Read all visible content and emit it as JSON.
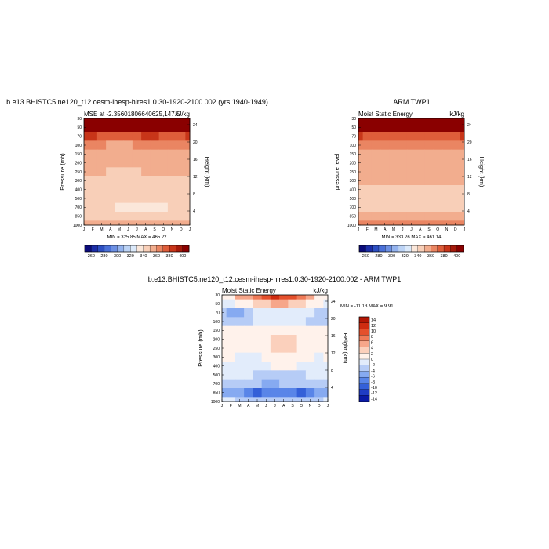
{
  "chart_data": [
    {
      "type": "heatmap",
      "title": "b.e13.BHISTC5.ne120_t12.cesm-ihesp-hires1.0.30-1920-2100.002 (yrs 1940-1949)",
      "left_label": "MSE at -2.35601806640625,147.5",
      "right_label": "kJ/kg",
      "xlabel": "",
      "ylabel": "Pressure (mb)",
      "ylabel_right": "Height (km)",
      "x_ticks": [
        "J",
        "F",
        "M",
        "A",
        "M",
        "J",
        "J",
        "A",
        "S",
        "O",
        "N",
        "D",
        "J"
      ],
      "y_ticks": [
        "30",
        "50",
        "70",
        "100",
        "150",
        "200",
        "250",
        "300",
        "400",
        "500",
        "700",
        "850",
        "1000"
      ],
      "y_ticks_right": [
        "24",
        "20",
        "16",
        "12",
        "8",
        "4"
      ],
      "stats": "MIN = 325.85 MAX = 465.22",
      "colorbar_labels": [
        "260",
        "280",
        "300",
        "320",
        "340",
        "360",
        "380",
        "400"
      ],
      "levels": [
        250,
        260,
        270,
        280,
        290,
        300,
        310,
        320,
        330,
        340,
        350,
        360,
        370,
        380,
        390,
        400
      ],
      "pressure_levels": [
        30,
        50,
        70,
        100,
        150,
        200,
        250,
        300,
        400,
        500,
        700,
        850,
        1000
      ],
      "values_by_level": [
        [
          440,
          440,
          440,
          440,
          440,
          440,
          440,
          440,
          440,
          440,
          440,
          440,
          440
        ],
        [
          405,
          400,
          395,
          392,
          390,
          392,
          395,
          398,
          400,
          398,
          398,
          400,
          405
        ],
        [
          372,
          370,
          368,
          366,
          365,
          366,
          368,
          370,
          370,
          369,
          368,
          369,
          372
        ],
        [
          352,
          351,
          350,
          349,
          348,
          349,
          350,
          351,
          351,
          350,
          350,
          350,
          352
        ],
        [
          347,
          347,
          346,
          345,
          345,
          345,
          346,
          346,
          346,
          346,
          346,
          346,
          347
        ],
        [
          345,
          345,
          344,
          343,
          343,
          343,
          344,
          344,
          344,
          344,
          344,
          344,
          345
        ],
        [
          342,
          342,
          341,
          339,
          338,
          338,
          339,
          340,
          341,
          341,
          341,
          341,
          342
        ],
        [
          338,
          338,
          337,
          336,
          335,
          335,
          335,
          336,
          337,
          337,
          337,
          337,
          338
        ],
        [
          335,
          335,
          334,
          333,
          333,
          332,
          332,
          333,
          334,
          334,
          334,
          334,
          335
        ],
        [
          334,
          334,
          333,
          332,
          331,
          331,
          331,
          331,
          332,
          333,
          333,
          333,
          334
        ],
        [
          331,
          333,
          332,
          330,
          328,
          328,
          328,
          328,
          328,
          329,
          330,
          331,
          331
        ],
        [
          336,
          336,
          336,
          335,
          335,
          334,
          334,
          334,
          335,
          335,
          336,
          336,
          336
        ],
        [
          348,
          348,
          348,
          347,
          346,
          345,
          345,
          346,
          347,
          347,
          348,
          348,
          348
        ]
      ]
    },
    {
      "type": "heatmap",
      "title": "ARM TWP1",
      "left_label": "Moist Static Energy",
      "right_label": "kJ/kg",
      "xlabel": "",
      "ylabel": "pressure level",
      "ylabel_right": "Height (km)",
      "x_ticks": [
        "J",
        "F",
        "M",
        "A",
        "M",
        "J",
        "J",
        "A",
        "S",
        "O",
        "N",
        "D",
        "J"
      ],
      "y_ticks": [
        "30",
        "50",
        "70",
        "100",
        "150",
        "200",
        "250",
        "300",
        "400",
        "500",
        "700",
        "850",
        "1000"
      ],
      "y_ticks_right": [
        "24",
        "20",
        "16",
        "12",
        "8",
        "4"
      ],
      "stats": "MIN = 333.26 MAX = 461.14",
      "colorbar_labels": [
        "260",
        "280",
        "300",
        "320",
        "340",
        "360",
        "380",
        "400"
      ],
      "levels": [
        250,
        260,
        270,
        280,
        290,
        300,
        310,
        320,
        330,
        340,
        350,
        360,
        370,
        380,
        390,
        400
      ],
      "pressure_levels": [
        30,
        50,
        70,
        100,
        150,
        200,
        250,
        300,
        400,
        500,
        700,
        850,
        1000
      ],
      "values_by_level": [
        [
          440,
          440,
          440,
          440,
          440,
          440,
          440,
          440,
          440,
          440,
          440,
          440,
          440
        ],
        [
          400,
          398,
          397,
          396,
          395,
          396,
          397,
          398,
          398,
          397,
          396,
          397,
          400
        ],
        [
          370,
          369,
          368,
          367,
          366,
          367,
          368,
          369,
          369,
          368,
          368,
          368,
          370
        ],
        [
          355,
          354,
          353,
          352,
          352,
          352,
          353,
          353,
          354,
          354,
          353,
          353,
          355
        ],
        [
          348,
          348,
          347,
          347,
          347,
          347,
          347,
          347,
          347,
          347,
          347,
          347,
          348
        ],
        [
          345,
          345,
          345,
          344,
          344,
          344,
          344,
          345,
          345,
          345,
          345,
          345,
          345
        ],
        [
          343,
          343,
          342,
          342,
          342,
          342,
          342,
          342,
          342,
          342,
          342,
          342,
          343
        ],
        [
          341,
          341,
          341,
          340,
          340,
          340,
          340,
          340,
          341,
          341,
          341,
          341,
          341
        ],
        [
          339,
          339,
          339,
          338,
          338,
          338,
          338,
          338,
          339,
          339,
          339,
          339,
          339
        ],
        [
          337,
          337,
          337,
          337,
          337,
          336,
          336,
          336,
          337,
          337,
          337,
          337,
          337
        ],
        [
          336,
          336,
          336,
          335,
          335,
          335,
          335,
          335,
          335,
          336,
          336,
          336,
          336
        ],
        [
          341,
          340,
          340,
          340,
          340,
          340,
          340,
          340,
          340,
          340,
          341,
          341,
          341
        ],
        [
          350,
          350,
          350,
          350,
          350,
          350,
          350,
          350,
          350,
          350,
          350,
          350,
          350
        ]
      ]
    },
    {
      "type": "heatmap",
      "title": "b.e13.BHISTC5.ne120_t12.cesm-ihesp-hires1.0.30-1920-2100.002 - ARM TWP1",
      "left_label": "Moist Static Energy",
      "right_label": "kJ/kg",
      "xlabel": "",
      "ylabel": "Pressure (mb)",
      "ylabel_right": "Height (km)",
      "x_ticks": [
        "J",
        "F",
        "M",
        "A",
        "M",
        "J",
        "J",
        "A",
        "S",
        "O",
        "N",
        "D",
        "J"
      ],
      "y_ticks": [
        "30",
        "50",
        "70",
        "100",
        "150",
        "200",
        "250",
        "300",
        "400",
        "500",
        "700",
        "850",
        "1000"
      ],
      "y_ticks_right": [
        "24",
        "20",
        "16",
        "12",
        "8",
        "4"
      ],
      "stats": "MIN = -11.13 MAX =   9.91",
      "colorbar_labels": [
        "14",
        "12",
        "10",
        "8",
        "6",
        "4",
        "2",
        "0",
        "-2",
        "-4",
        "-6",
        "-8",
        "-10",
        "-12",
        "-14"
      ],
      "levels": [
        -14,
        -12,
        -10,
        -8,
        -6,
        -4,
        -2,
        0,
        2,
        4,
        6,
        8,
        10,
        12,
        14
      ],
      "pressure_levels": [
        30,
        50,
        70,
        100,
        150,
        200,
        250,
        300,
        400,
        500,
        700,
        850,
        1000
      ],
      "values_by_level": [
        [
          -2,
          -1,
          2,
          3,
          5,
          7,
          8,
          7,
          6,
          4,
          2,
          -1,
          -2
        ],
        [
          -3,
          -3,
          -2,
          -1,
          0,
          1,
          2,
          2,
          1,
          0,
          -1,
          -2,
          -3
        ],
        [
          -6,
          -7,
          -7,
          -6,
          -4,
          -3,
          -3,
          -3,
          -3,
          -3,
          -4,
          -6,
          -6
        ],
        [
          -5,
          -6,
          -6,
          -5,
          -4,
          -3,
          -3,
          -3,
          -3,
          -4,
          -5,
          -6,
          -5
        ],
        [
          -2,
          -2,
          -2,
          -2,
          -2,
          -2,
          -2,
          -2,
          -2,
          -2,
          -2,
          -2,
          -2
        ],
        [
          -1,
          -1,
          -1,
          -2,
          -2,
          -1,
          0,
          0,
          0,
          -1,
          -1,
          -1,
          -1
        ],
        [
          -2,
          -2,
          -2,
          -2,
          -2,
          -1,
          0,
          0,
          0,
          -1,
          -1,
          -1,
          -2
        ],
        [
          -2,
          -2,
          -3,
          -3,
          -3,
          -2,
          -1,
          -1,
          -1,
          -2,
          -2,
          -3,
          -2
        ],
        [
          -3,
          -3,
          -3,
          -3,
          -3,
          -3,
          -2,
          -2,
          -2,
          -3,
          -3,
          -3,
          -3
        ],
        [
          -4,
          -4,
          -4,
          -4,
          -5,
          -5,
          -5,
          -5,
          -5,
          -5,
          -4,
          -4,
          -4
        ],
        [
          -5,
          -5,
          -6,
          -6,
          -6,
          -7,
          -7,
          -6,
          -6,
          -6,
          -6,
          -6,
          -5
        ],
        [
          -7,
          -7,
          -8,
          -9,
          -11,
          -10,
          -9,
          -9,
          -10,
          -11,
          -10,
          -8,
          -7
        ],
        [
          -4,
          -4,
          -5,
          -5,
          -6,
          -5,
          -5,
          -5,
          -5,
          -6,
          -5,
          -5,
          -4
        ]
      ]
    }
  ],
  "palettes": {
    "sequential": [
      "#0b0b7a",
      "#1c2ea8",
      "#2d4fc2",
      "#4a70d8",
      "#6c90e4",
      "#94b3ee",
      "#bcd3f5",
      "#dbe9fa",
      "#fbe7da",
      "#f8cfb8",
      "#f2ad8e",
      "#ea8562",
      "#de5d3a",
      "#c83519",
      "#a51a0b",
      "#8a0000"
    ],
    "diverging": [
      "#0a1aa6",
      "#1f3cc4",
      "#3460d8",
      "#5985e8",
      "#86aaf1",
      "#b6ccf6",
      "#e2ecfb",
      "#fff2eb",
      "#fbd0bc",
      "#f6a68a",
      "#ef7a57",
      "#e4502c",
      "#cf2c10",
      "#b31604"
    ]
  }
}
